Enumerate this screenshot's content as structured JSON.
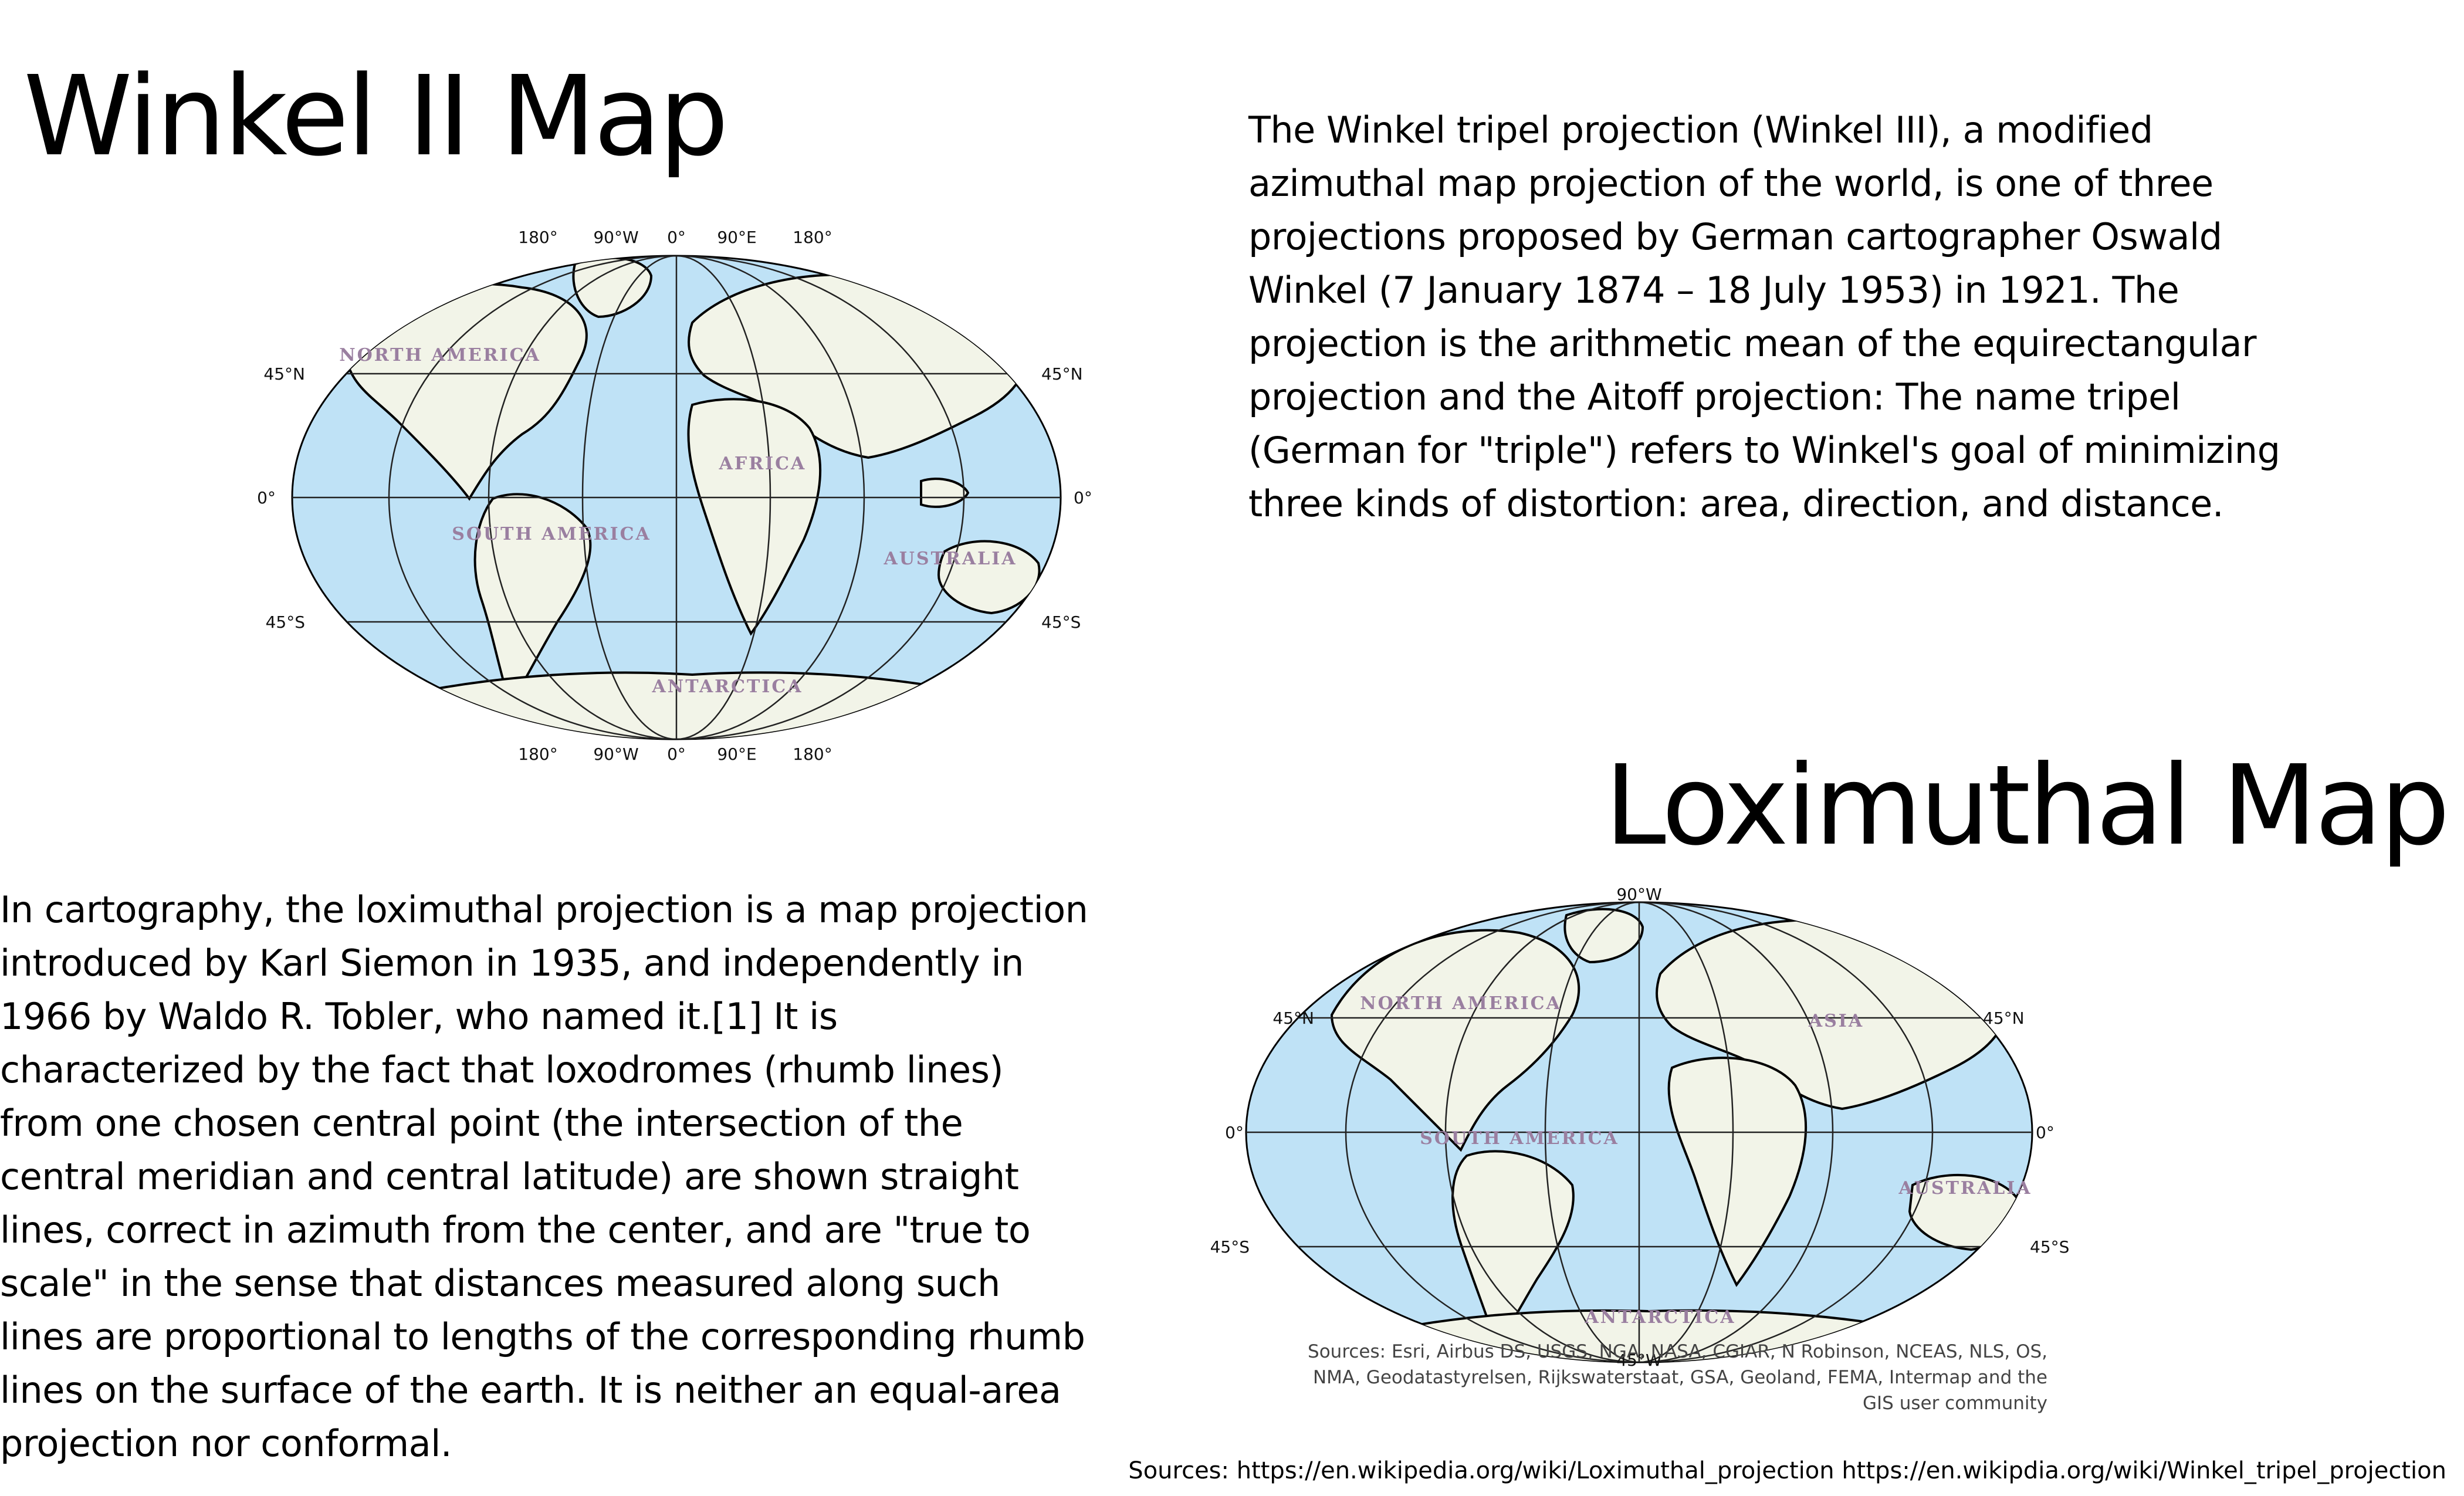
{
  "winkel": {
    "title": "Winkel II Map",
    "description": "The Winkel tripel projection (Winkel III), a modified azimuthal map projection of the world, is one of three projections proposed by German cartographer Oswald Winkel (7 January 1874 – 18 July 1953) in 1921. The projection is the arithmetic mean of the equirectangular projection and the Aitoff projection: The name tripel (German for \"triple\") refers to Winkel's goal of minimizing three kinds of distortion: area, direction, and distance.",
    "map": {
      "top_labels": [
        "180°",
        "90°W",
        "0°",
        "90°E",
        "180°"
      ],
      "bottom_labels": [
        "180°",
        "90°W",
        "0°",
        "90°E",
        "180°"
      ],
      "left_labels": [
        "45°N",
        "0°",
        "45°S"
      ],
      "right_labels": [
        "45°N",
        "0°",
        "45°S"
      ],
      "continents": [
        "NORTH AMERICA",
        "AFRICA",
        "SOUTH AMERICA",
        "AUSTRALIA",
        "ANTARCTICA"
      ]
    }
  },
  "loximuthal": {
    "title": "Loximuthal Map",
    "description": "In cartography, the loximuthal projection is a map projection introduced by Karl Siemon in 1935, and independently in 1966 by Waldo R. Tobler, who named it.[1] It is characterized by the fact that loxodromes (rhumb lines) from one chosen central point (the intersection of the central meridian and central latitude) are shown straight lines, correct in azimuth from the center, and are \"true to scale\" in the sense that distances measured along such lines are proportional to lengths of the corresponding rhumb lines on the surface of the earth. It is neither an equal-area projection nor conformal.",
    "map": {
      "top_label": "90°W",
      "bottom_label": "45°W",
      "left_labels": [
        "45°N",
        "0°",
        "45°S"
      ],
      "right_labels": [
        "45°N",
        "0°",
        "45°S"
      ],
      "continents": [
        "NORTH AMERICA",
        "SOUTH AMERICA",
        "ASIA",
        "AUSTRALIA",
        "ANTARCTICA"
      ],
      "credit": "Sources: Esri, Airbus DS, USGS, NGA, NASA, CGIAR, N Robinson, NCEAS, NLS, OS, NMA, Geodatastyrelsen, Rijkswaterstaat, GSA, Geoland, FEMA, Intermap and the GIS user community"
    }
  },
  "footer": {
    "sources": "Sources: https://en.wikipedia.org/wiki/Loximuthal_projection https://en.wikipdia.org/wiki/Winkel_tripel_projection"
  },
  "colors": {
    "ocean": "#bfe2f6",
    "land": "#f2f4e8",
    "graticule": "#222222",
    "border": "#000000"
  }
}
